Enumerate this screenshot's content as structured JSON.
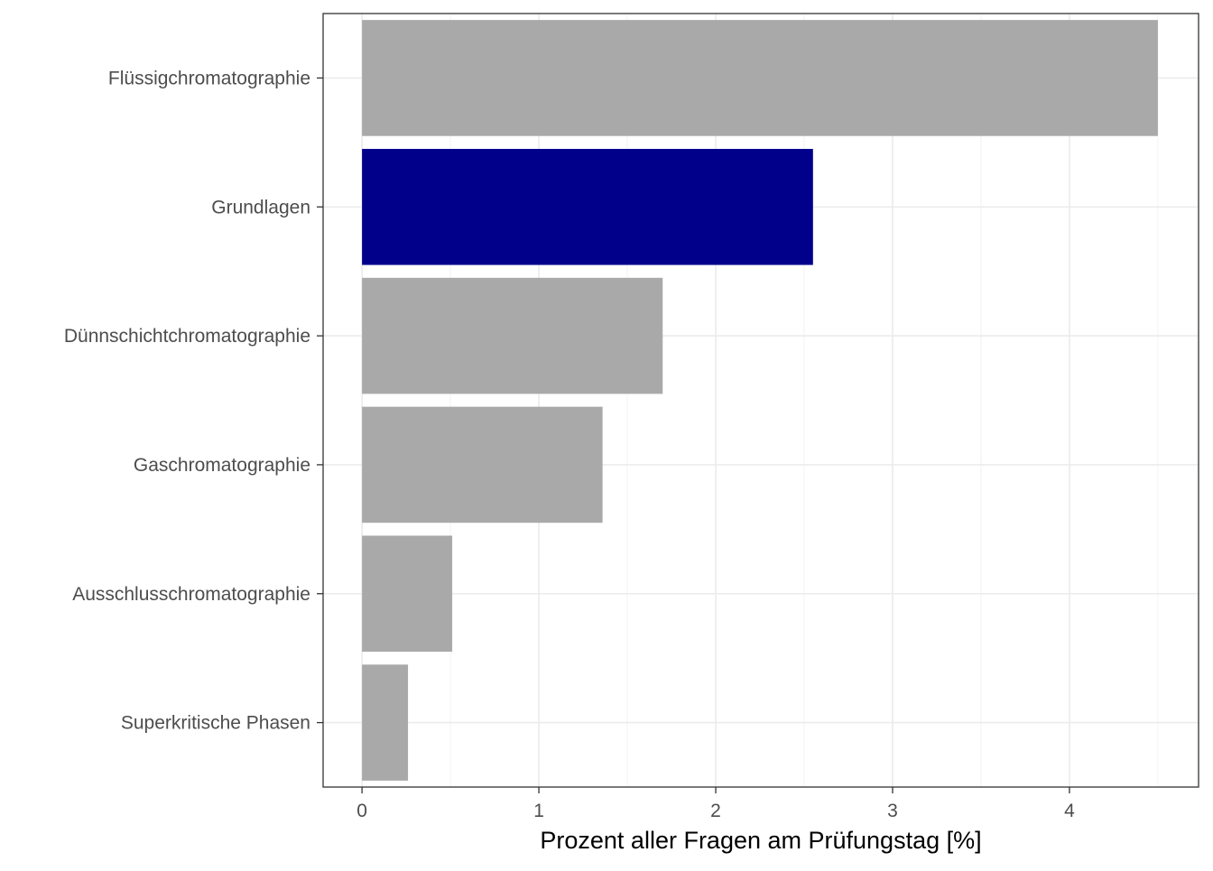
{
  "chart_data": {
    "type": "bar",
    "orientation": "horizontal",
    "title": "",
    "xlabel": "Prozent aller Fragen am Prüfungstag [%]",
    "ylabel": "",
    "categories": [
      "Flüssigchromatographie",
      "Grundlagen",
      "Dünnschichtchromatographie",
      "Gaschromatographie",
      "Ausschlusschromatographie",
      "Superkritische Phasen"
    ],
    "values": [
      4.5,
      2.55,
      1.7,
      1.36,
      0.51,
      0.26
    ],
    "highlight": "Grundlagen",
    "colors": {
      "default": "#a9a9a9",
      "highlight": "#00008b"
    },
    "xlim": [
      -0.22,
      4.73
    ],
    "xticks": [
      0,
      1,
      2,
      3,
      4
    ],
    "xtick_labels": [
      "0",
      "1",
      "2",
      "3",
      "4"
    ],
    "grid": true,
    "legend": "none"
  }
}
